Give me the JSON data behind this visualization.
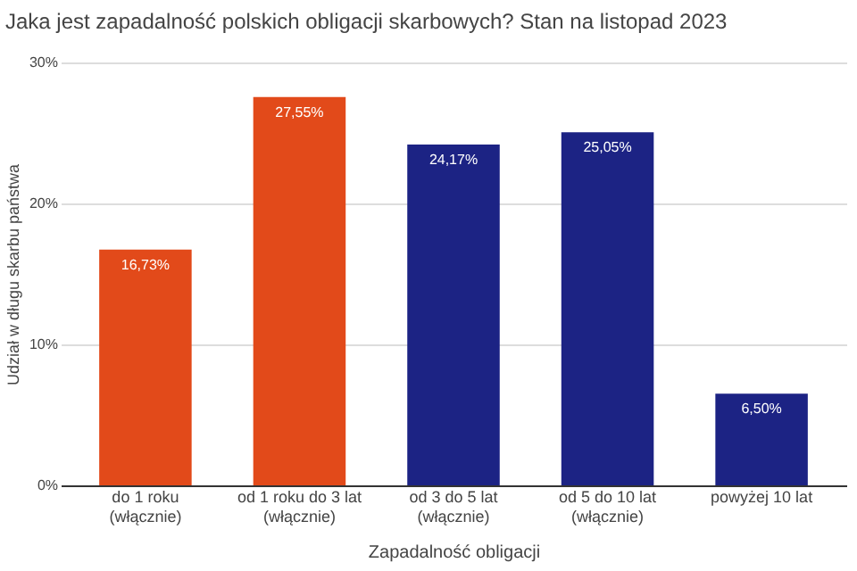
{
  "chart_data": {
    "type": "bar",
    "title": "Jaka jest zapadalność polskich obligacji skarbowych? Stan na listopad 2023",
    "xlabel": "Zapadalność obligacji",
    "ylabel": "Udział w długu skarbu państwa",
    "categories": [
      "do 1 roku\n(włącznie)",
      "od 1 roku do 3 lat\n(włącznie)",
      "od 3 do 5 lat\n(włącznie)",
      "od 5 do 10 lat\n(włącznie)",
      "powyżej 10 lat"
    ],
    "values": [
      16.73,
      27.55,
      24.17,
      25.05,
      6.5
    ],
    "colors": [
      "#e24a1a",
      "#e24a1a",
      "#1c2384",
      "#1c2384",
      "#1c2384"
    ],
    "value_labels": [
      "16,73%",
      "27,55%",
      "24,17%",
      "25,05%",
      "6,50%"
    ],
    "ylim": [
      0,
      30
    ],
    "yticks": [
      {
        "value": 0,
        "label": "0%"
      },
      {
        "value": 10,
        "label": "10%"
      },
      {
        "value": 20,
        "label": "20%"
      },
      {
        "value": 30,
        "label": "30%"
      }
    ],
    "grid": "y"
  }
}
